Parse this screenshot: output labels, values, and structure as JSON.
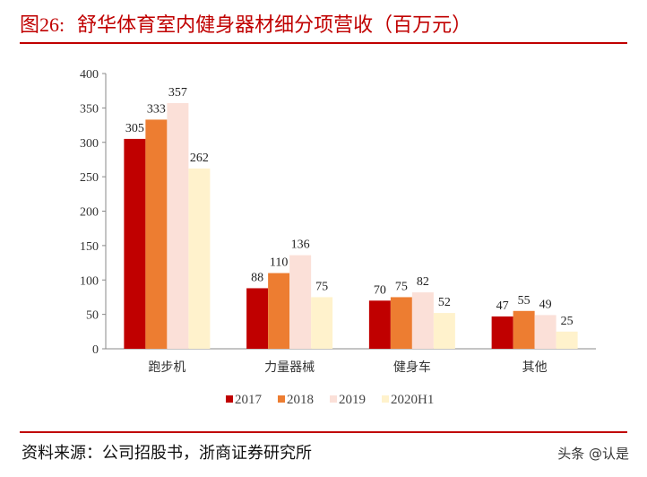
{
  "header": {
    "figure_no": "图26:",
    "title": "舒华体育室内健身器材细分项营收（百万元）"
  },
  "footer": {
    "source": "资料来源：公司招股书，浙商证券研究所",
    "watermark": "头条 @认是"
  },
  "chart_data": {
    "type": "bar",
    "title": "",
    "xlabel": "",
    "ylabel": "",
    "ylim": [
      0,
      400
    ],
    "yticks": [
      0,
      50,
      100,
      150,
      200,
      250,
      300,
      350,
      400
    ],
    "categories": [
      "跑步机",
      "力量器械",
      "健身车",
      "其他"
    ],
    "series": [
      {
        "name": "2017",
        "values": [
          305,
          88,
          70,
          47
        ],
        "color": "#c00000"
      },
      {
        "name": "2018",
        "values": [
          333,
          110,
          75,
          55
        ],
        "color": "#ed7d31"
      },
      {
        "name": "2019",
        "values": [
          357,
          136,
          82,
          49
        ],
        "color": "#fbe0d8"
      },
      {
        "name": "2020H1",
        "values": [
          262,
          75,
          52,
          25
        ],
        "color": "#fff2cc"
      }
    ],
    "legend": "bottom",
    "grid": false
  }
}
